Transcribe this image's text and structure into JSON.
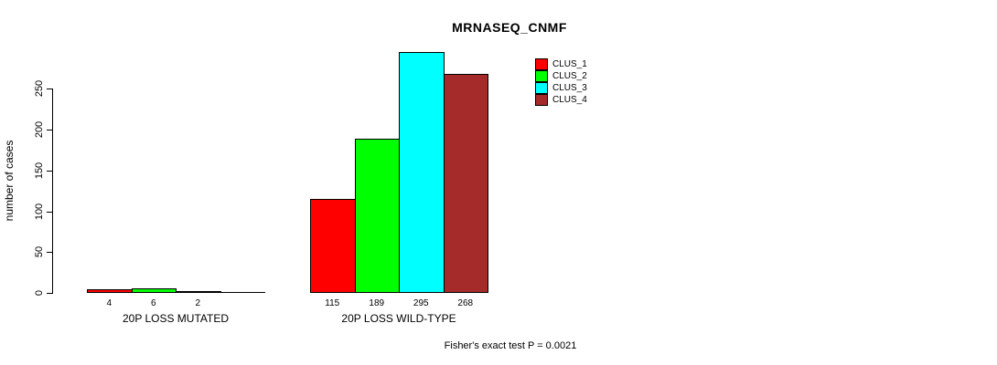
{
  "title": "MRNASEQ_CNMF",
  "footer": "Fisher's exact test P = 0.0021",
  "colors": {
    "clus_1": "#FF0000",
    "clus_2": "#00FF00",
    "clus_3": "#00FFFF",
    "clus_4": "#A52A2A",
    "axis": "#000000",
    "background": "#FFFFFF"
  },
  "chart_data": {
    "type": "bar",
    "title": "MRNASEQ_CNMF",
    "xlabel": "",
    "ylabel": "number of cases",
    "categories": [
      "20P LOSS MUTATED",
      "20P LOSS WILD-TYPE"
    ],
    "series": [
      {
        "name": "CLUS_1",
        "color": "#FF0000",
        "values": [
          4,
          115
        ]
      },
      {
        "name": "CLUS_2",
        "color": "#00FF00",
        "values": [
          6,
          189
        ]
      },
      {
        "name": "CLUS_3",
        "color": "#00FFFF",
        "values": [
          2,
          295
        ]
      },
      {
        "name": "CLUS_4",
        "color": "#A52A2A",
        "values": [
          0,
          268
        ]
      }
    ],
    "bar_labels": [
      [
        "4",
        "6",
        "2",
        ""
      ],
      [
        "115",
        "189",
        "295",
        "268"
      ]
    ],
    "yticks": [
      0,
      50,
      100,
      150,
      200,
      250
    ],
    "ylim": [
      0,
      300
    ],
    "grid": false,
    "legend_position": "top-right",
    "legend_entries": [
      "CLUS_1",
      "CLUS_2",
      "CLUS_3",
      "CLUS_4"
    ],
    "annotation": "Fisher's exact test P = 0.0021"
  }
}
